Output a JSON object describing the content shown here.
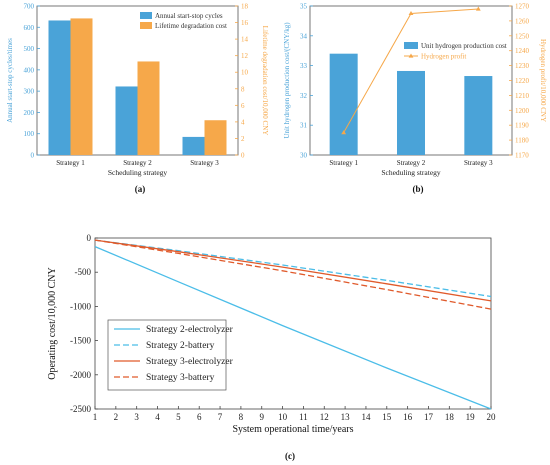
{
  "chart_data": [
    {
      "id": "a",
      "type": "bar",
      "panel_label": "(a)",
      "categories": [
        "Strategy 1",
        "Strategy 2",
        "Strategy 3"
      ],
      "xlabel": "Scheduling strategy",
      "ylabel_left": "Annual start-stop cycles/times",
      "ylabel_right": "Lifetime degradation cost/10,000 CNY",
      "ylim_left": [
        0,
        700
      ],
      "yticks_left": [
        0,
        100,
        200,
        300,
        400,
        500,
        600,
        700
      ],
      "ylim_right": [
        0,
        18
      ],
      "yticks_right": [
        0,
        2,
        4,
        6,
        8,
        10,
        12,
        14,
        16,
        18
      ],
      "left_axis_color": "#4aa3d8",
      "right_axis_color": "#f6a84a",
      "legend_position": "top-right",
      "series": [
        {
          "name": "Annual start-stop cycles",
          "axis": "left",
          "color": "#4aa3d8",
          "values": [
            632,
            322,
            85
          ]
        },
        {
          "name": "Lifetime degradation cost",
          "axis": "right",
          "color": "#f6a84a",
          "values": [
            16.5,
            11.3,
            4.2
          ]
        }
      ]
    },
    {
      "id": "b",
      "type": "bar",
      "panel_label": "(b)",
      "categories": [
        "Strategy 1",
        "Strategy 2",
        "Strategy 3"
      ],
      "xlabel": "Scheduling strategy",
      "ylabel_left": "Unit hydrogen production cost/(CNY/kg)",
      "ylabel_right": "Hydrogen profit/10,000 CNY",
      "ylim_left": [
        30,
        35
      ],
      "yticks_left": [
        30,
        31,
        32,
        33,
        34,
        35
      ],
      "ylim_right": [
        1170,
        1270
      ],
      "yticks_right": [
        1170,
        1180,
        1190,
        1200,
        1210,
        1220,
        1230,
        1240,
        1250,
        1260,
        1270
      ],
      "left_axis_color": "#4aa3d8",
      "right_axis_color": "#f6a84a",
      "legend_position": "top-right",
      "series": [
        {
          "name": "Unit hydrogen production cost",
          "axis": "left",
          "kind": "bar",
          "color": "#4aa3d8",
          "values": [
            33.4,
            32.82,
            32.65
          ]
        },
        {
          "name": "Hydrogen profit",
          "axis": "right",
          "kind": "line",
          "color": "#f6a84a",
          "values": [
            1185,
            1265,
            1268
          ]
        }
      ]
    },
    {
      "id": "c",
      "type": "line",
      "panel_label": "(c)",
      "xlabel": "System operational time/years",
      "ylabel": "Operating cost/10,000 CNY",
      "x": [
        1,
        5,
        10,
        15,
        20
      ],
      "xlim": [
        1,
        20
      ],
      "xticks": [
        1,
        2,
        3,
        4,
        5,
        6,
        7,
        8,
        9,
        10,
        11,
        12,
        13,
        14,
        15,
        16,
        17,
        18,
        19,
        20
      ],
      "ylim": [
        -2500,
        0
      ],
      "yticks": [
        -2500,
        -2000,
        -1500,
        -1000,
        -500,
        0
      ],
      "legend_position": "bottom-left",
      "series": [
        {
          "name": "Strategy 2-electrolyzer",
          "color": "#4bbde8",
          "dash": "solid",
          "values": [
            -125,
            -640,
            -1280,
            -1900,
            -2500
          ]
        },
        {
          "name": "Strategy 2-battery",
          "color": "#4bbde8",
          "dash": "dashed",
          "values": [
            -30,
            -185,
            -395,
            -620,
            -855
          ]
        },
        {
          "name": "Strategy 3-electrolyzer",
          "color": "#e05a2b",
          "dash": "solid",
          "values": [
            -30,
            -200,
            -425,
            -670,
            -920
          ]
        },
        {
          "name": "Strategy 3-battery",
          "color": "#e05a2b",
          "dash": "dashed",
          "values": [
            -30,
            -225,
            -480,
            -755,
            -1040
          ]
        }
      ]
    }
  ]
}
